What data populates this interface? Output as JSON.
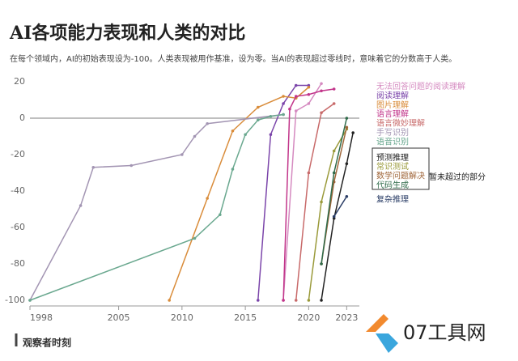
{
  "chart_data": {
    "type": "line",
    "title": "AI各项能力表现和人类的对比",
    "subtitle": "在每个领域内，AI的初始表现设为-100。人类表现被用作基准，设为零。当AI的表现超过零线时，意味着它的分数高于人类。",
    "xlim": [
      1998,
      2024
    ],
    "xticks": [
      1998,
      2005,
      2010,
      2015,
      2020,
      2023
    ],
    "ylim": [
      -100,
      20
    ],
    "yticks": [
      20,
      0,
      -20,
      -40,
      -60,
      -80,
      -100
    ],
    "zero_line": true,
    "annotation": "暂未超过的部分",
    "source": "观察者时刻",
    "watermark": "07工具网",
    "series": [
      {
        "name": "无法回答问题的阅读理解",
        "color": "#d58ac0",
        "x": [
          2018,
          2019,
          2020,
          2021
        ],
        "values": [
          -100,
          4,
          8,
          19
        ]
      },
      {
        "name": "阅读理解",
        "color": "#7b45aa",
        "x": [
          2016,
          2017,
          2018,
          2019,
          2020
        ],
        "values": [
          -100,
          -9,
          8,
          18,
          18
        ]
      },
      {
        "name": "图片理解",
        "color": "#d98c3a",
        "x": [
          2009,
          2012,
          2014,
          2016,
          2018,
          2019,
          2020
        ],
        "values": [
          -100,
          -44,
          -7,
          6,
          12,
          11,
          17
        ]
      },
      {
        "name": "语言理解",
        "color": "#c2358a",
        "x": [
          2018,
          2018.5,
          2019,
          2020,
          2021,
          2022
        ],
        "values": [
          -100,
          5,
          12,
          13,
          15,
          16
        ]
      },
      {
        "name": "语言微妙理解",
        "color": "#c86a6a",
        "x": [
          2019,
          2020,
          2021,
          2022
        ],
        "values": [
          -100,
          -30,
          3,
          8
        ]
      },
      {
        "name": "手写识别",
        "color": "#a395b3",
        "x": [
          1998,
          2002,
          2003,
          2006,
          2010,
          2011,
          2012,
          2018
        ],
        "values": [
          -100,
          -48,
          -27,
          -26,
          -20,
          -10,
          -3,
          2
        ]
      },
      {
        "name": "语音识别",
        "color": "#6aa88f",
        "x": [
          1998,
          2011,
          2013,
          2014,
          2015,
          2016,
          2017,
          2018
        ],
        "values": [
          -100,
          -66,
          -53,
          -28,
          -9,
          -1,
          1,
          2
        ]
      },
      {
        "name": "预测推理",
        "color": "#222222",
        "x": [
          2021,
          2022,
          2023,
          2023.5
        ],
        "values": [
          -100,
          -55,
          -25,
          -8
        ]
      },
      {
        "name": "常识测试",
        "color": "#9a9a3a",
        "x": [
          2020,
          2021,
          2022,
          2023
        ],
        "values": [
          -100,
          -46,
          -18,
          -6
        ]
      },
      {
        "name": "数学问题解决",
        "color": "#a0663a",
        "x": [
          2021,
          2022,
          2023
        ],
        "values": [
          -80,
          -35,
          -5
        ]
      },
      {
        "name": "代码生成",
        "color": "#2f6b4a",
        "x": [
          2021,
          2022,
          2023
        ],
        "values": [
          -80,
          -30,
          0
        ]
      },
      {
        "name": "复杂推理",
        "color": "#2a3d66",
        "x": [
          2022,
          2023
        ],
        "values": [
          -54,
          -43
        ]
      }
    ]
  }
}
